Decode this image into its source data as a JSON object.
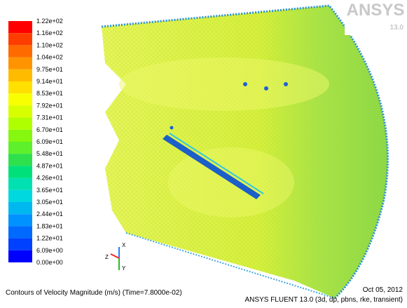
{
  "legend": {
    "labels": [
      "1.22e+02",
      "1.16e+02",
      "1.10e+02",
      "1.04e+02",
      "9.75e+01",
      "9.14e+01",
      "8.53e+01",
      "7.92e+01",
      "7.31e+01",
      "6.70e+01",
      "6.09e+01",
      "5.48e+01",
      "4.87e+01",
      "4.26e+01",
      "3.65e+01",
      "3.05e+01",
      "2.44e+01",
      "1.83e+01",
      "1.22e+01",
      "6.09e+00",
      "0.00e+00"
    ],
    "colors": [
      "#ff0000",
      "#ff3d00",
      "#ff6a00",
      "#ff9400",
      "#ffbb00",
      "#ffe000",
      "#f8ff00",
      "#d8ff00",
      "#b0ff00",
      "#86f70e",
      "#5ef02a",
      "#2ee04c",
      "#00e07a",
      "#00e0b0",
      "#00d8e0",
      "#00b8f0",
      "#0092ff",
      "#006aff",
      "#0040ff",
      "#0000ff"
    ]
  },
  "logo": {
    "brand": "ANSYS",
    "version": "13.0"
  },
  "triad": {
    "z": "Z",
    "x": "X",
    "y": "Y"
  },
  "footer": {
    "caption": "Contours of Velocity Magnitude (m/s)  (Time=7.8000e-02)",
    "date": "Oct 05, 2012",
    "solver": "ANSYS FLUENT 13.0 (3d, dp, pbns, rke, transient)"
  }
}
